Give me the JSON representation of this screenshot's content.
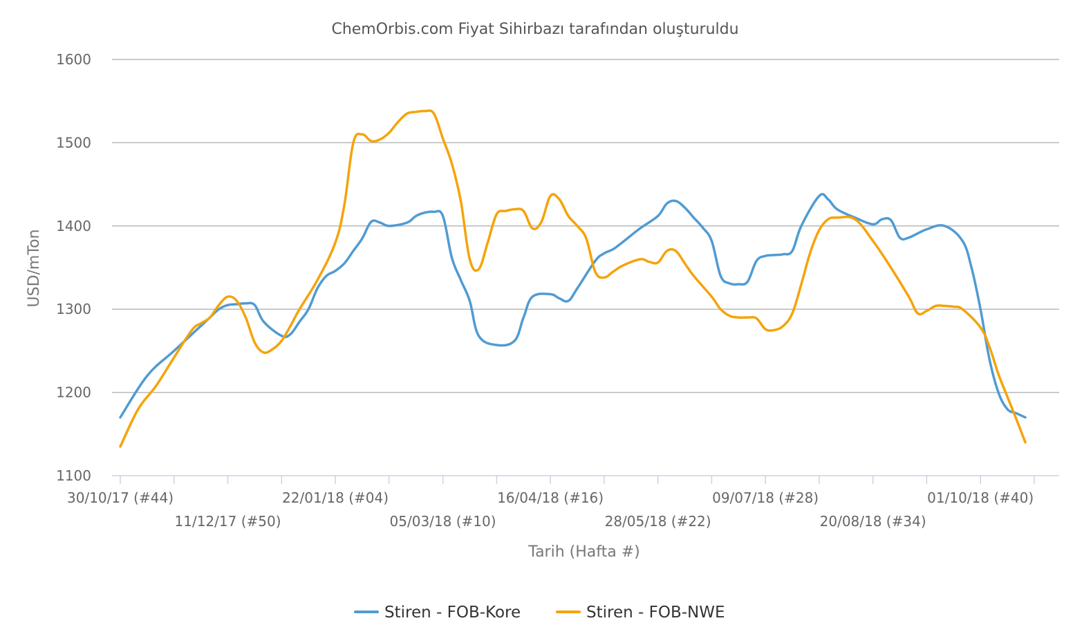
{
  "chart_data": {
    "type": "line",
    "title": "ChemOrbis.com Fiyat Sihirbazı tarafından oluşturuldu",
    "xlabel": "Tarih (Hafta #)",
    "ylabel": "USD/mTon",
    "ylim": [
      1100,
      1600
    ],
    "y_ticks": [
      "1100",
      "1200",
      "1300",
      "1400",
      "1500",
      "1600"
    ],
    "grid": true,
    "legend_position": "bottom-center",
    "x_tick_labels": [
      "30/10/17 (#44)",
      "11/12/17 (#50)",
      "22/01/18 (#04)",
      "05/03/18 (#10)",
      "16/04/18 (#16)",
      "28/05/18 (#22)",
      "09/07/18 (#28)",
      "20/08/18 (#34)",
      "01/10/18 (#40)"
    ],
    "x_tick_label_index": [
      0,
      6,
      12,
      18,
      24,
      30,
      36,
      42,
      48
    ],
    "x_week_count": 54,
    "series": [
      {
        "name": "Stiren - FOB-Kore",
        "color": "#4f9bd3",
        "values": [
          [
            0,
            1170
          ],
          [
            1.5,
            1220
          ],
          [
            3,
            1250
          ],
          [
            4.5,
            1280
          ],
          [
            5,
            1290
          ],
          [
            5.5,
            1300
          ],
          [
            6,
            1305
          ],
          [
            6.5,
            1306
          ],
          [
            7,
            1307
          ],
          [
            7.5,
            1305
          ],
          [
            8,
            1285
          ],
          [
            9,
            1268
          ],
          [
            9.5,
            1270
          ],
          [
            10,
            1285
          ],
          [
            10.5,
            1300
          ],
          [
            11,
            1325
          ],
          [
            11.5,
            1340
          ],
          [
            12,
            1346
          ],
          [
            12.5,
            1355
          ],
          [
            13,
            1370
          ],
          [
            13.5,
            1385
          ],
          [
            14,
            1405
          ],
          [
            14.5,
            1404
          ],
          [
            15,
            1400
          ],
          [
            16,
            1404
          ],
          [
            16.5,
            1412
          ],
          [
            17,
            1416
          ],
          [
            17.5,
            1417
          ],
          [
            18,
            1412
          ],
          [
            18.5,
            1362
          ],
          [
            19,
            1335
          ],
          [
            19.5,
            1310
          ],
          [
            20,
            1268
          ],
          [
            21,
            1257
          ],
          [
            22,
            1262
          ],
          [
            22.5,
            1290
          ],
          [
            23,
            1315
          ],
          [
            24,
            1318
          ],
          [
            24.5,
            1313
          ],
          [
            25,
            1310
          ],
          [
            25.5,
            1325
          ],
          [
            26.5,
            1358
          ],
          [
            27,
            1367
          ],
          [
            27.5,
            1372
          ],
          [
            28,
            1380
          ],
          [
            29,
            1397
          ],
          [
            30,
            1412
          ],
          [
            30.5,
            1427
          ],
          [
            31,
            1430
          ],
          [
            31.5,
            1422
          ],
          [
            32,
            1410
          ],
          [
            32.5,
            1398
          ],
          [
            33,
            1382
          ],
          [
            33.5,
            1340
          ],
          [
            34,
            1331
          ],
          [
            34.5,
            1330
          ],
          [
            35,
            1333
          ],
          [
            35.5,
            1358
          ],
          [
            36,
            1364
          ],
          [
            36.5,
            1365
          ],
          [
            37,
            1366
          ],
          [
            37.5,
            1370
          ],
          [
            38,
            1400
          ],
          [
            39,
            1436
          ],
          [
            39.5,
            1432
          ],
          [
            40,
            1420
          ],
          [
            41,
            1410
          ],
          [
            42,
            1402
          ],
          [
            42.5,
            1408
          ],
          [
            43,
            1407
          ],
          [
            43.5,
            1386
          ],
          [
            44,
            1386
          ],
          [
            45,
            1396
          ],
          [
            46,
            1400
          ],
          [
            47,
            1382
          ],
          [
            47.5,
            1350
          ],
          [
            48,
            1300
          ],
          [
            48.5,
            1240
          ],
          [
            49,
            1200
          ],
          [
            49.5,
            1180
          ],
          [
            50,
            1175
          ],
          [
            50.5,
            1170
          ]
        ]
      },
      {
        "name": "Stiren - FOB-NWE",
        "color": "#f5a30a",
        "values": [
          [
            0,
            1135
          ],
          [
            1,
            1180
          ],
          [
            2,
            1208
          ],
          [
            3,
            1242
          ],
          [
            4,
            1275
          ],
          [
            4.5,
            1283
          ],
          [
            5,
            1290
          ],
          [
            5.5,
            1305
          ],
          [
            6,
            1315
          ],
          [
            6.5,
            1310
          ],
          [
            7,
            1290
          ],
          [
            7.5,
            1260
          ],
          [
            8,
            1248
          ],
          [
            8.5,
            1252
          ],
          [
            9,
            1262
          ],
          [
            9.5,
            1280
          ],
          [
            10,
            1300
          ],
          [
            11,
            1335
          ],
          [
            12,
            1380
          ],
          [
            12.5,
            1425
          ],
          [
            13,
            1500
          ],
          [
            13.5,
            1510
          ],
          [
            14,
            1502
          ],
          [
            14.5,
            1504
          ],
          [
            15,
            1512
          ],
          [
            15.5,
            1525
          ],
          [
            16,
            1535
          ],
          [
            16.5,
            1537
          ],
          [
            17,
            1538
          ],
          [
            17.5,
            1535
          ],
          [
            18,
            1505
          ],
          [
            18.5,
            1475
          ],
          [
            19,
            1430
          ],
          [
            19.5,
            1360
          ],
          [
            20,
            1348
          ],
          [
            20.5,
            1380
          ],
          [
            21,
            1414
          ],
          [
            21.5,
            1418
          ],
          [
            22,
            1420
          ],
          [
            22.5,
            1418
          ],
          [
            23,
            1397
          ],
          [
            23.5,
            1405
          ],
          [
            24,
            1436
          ],
          [
            24.5,
            1432
          ],
          [
            25,
            1412
          ],
          [
            25.5,
            1400
          ],
          [
            26,
            1385
          ],
          [
            26.5,
            1345
          ],
          [
            27,
            1338
          ],
          [
            27.5,
            1345
          ],
          [
            28,
            1352
          ],
          [
            29,
            1360
          ],
          [
            29.5,
            1357
          ],
          [
            30,
            1356
          ],
          [
            30.5,
            1370
          ],
          [
            31,
            1370
          ],
          [
            31.5,
            1355
          ],
          [
            32,
            1340
          ],
          [
            33,
            1315
          ],
          [
            33.5,
            1300
          ],
          [
            34,
            1292
          ],
          [
            34.5,
            1290
          ],
          [
            35,
            1290
          ],
          [
            35.5,
            1289
          ],
          [
            36,
            1276
          ],
          [
            36.5,
            1275
          ],
          [
            37,
            1280
          ],
          [
            37.5,
            1295
          ],
          [
            38,
            1330
          ],
          [
            38.5,
            1368
          ],
          [
            39,
            1395
          ],
          [
            39.5,
            1408
          ],
          [
            40,
            1410
          ],
          [
            41,
            1408
          ],
          [
            42,
            1382
          ],
          [
            43,
            1350
          ],
          [
            44,
            1315
          ],
          [
            44.5,
            1295
          ],
          [
            45,
            1298
          ],
          [
            45.5,
            1304
          ],
          [
            46,
            1304
          ],
          [
            46.5,
            1303
          ],
          [
            47,
            1300
          ],
          [
            48,
            1278
          ],
          [
            48.5,
            1255
          ],
          [
            49,
            1222
          ],
          [
            49.5,
            1195
          ],
          [
            50,
            1168
          ],
          [
            50.5,
            1140
          ]
        ]
      }
    ]
  }
}
